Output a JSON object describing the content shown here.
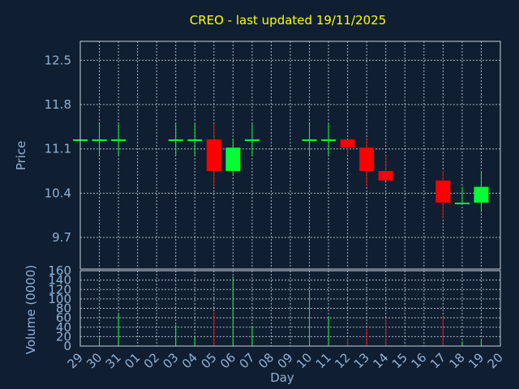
{
  "chart_data": {
    "type": "candlestick",
    "title": "CREO - last updated 19/11/2025",
    "xlabel": "Day",
    "price_panel": {
      "ylabel": "Price",
      "ylim": [
        9.2,
        12.8
      ],
      "yticks": [
        "12.5",
        "11.8",
        "11.1",
        "10.4",
        "9.7"
      ],
      "ytick_values": [
        12.5,
        11.8,
        11.1,
        10.4,
        9.7
      ],
      "grid": true
    },
    "volume_panel": {
      "ylabel": "Volume (0000)",
      "ylim": [
        0,
        160
      ],
      "yticks": [
        "160",
        "140",
        "120",
        "100",
        "80",
        "60",
        "40",
        "20",
        "0"
      ],
      "ytick_values": [
        160,
        140,
        120,
        100,
        80,
        60,
        40,
        20,
        0
      ],
      "grid": true
    },
    "x_labels": [
      "29",
      "30",
      "31",
      "01",
      "02",
      "03",
      "04",
      "05",
      "06",
      "07",
      "08",
      "09",
      "10",
      "11",
      "12",
      "13",
      "14",
      "15",
      "16",
      "17",
      "18",
      "19",
      "20"
    ],
    "candles": [
      {
        "day": "29",
        "open": 11.25,
        "close": 11.25,
        "high": 11.25,
        "low": 11.25,
        "volume": 0
      },
      {
        "day": "30",
        "open": 11.25,
        "close": 11.25,
        "high": 11.5,
        "low": 11.0,
        "volume": 18
      },
      {
        "day": "31",
        "open": 11.25,
        "close": 11.25,
        "high": 11.5,
        "low": 11.0,
        "volume": 70
      },
      {
        "day": "03",
        "open": 11.25,
        "close": 11.25,
        "high": 11.5,
        "low": 11.0,
        "volume": 45
      },
      {
        "day": "04",
        "open": 11.25,
        "close": 11.25,
        "high": 11.5,
        "low": 11.0,
        "volume": 20
      },
      {
        "day": "05",
        "open": 11.25,
        "close": 10.75,
        "high": 11.5,
        "low": 10.5,
        "volume": 72
      },
      {
        "day": "06",
        "open": 10.75,
        "close": 11.12,
        "high": 11.25,
        "low": 10.7,
        "volume": 148
      },
      {
        "day": "07",
        "open": 11.25,
        "close": 11.25,
        "high": 11.5,
        "low": 11.0,
        "volume": 40
      },
      {
        "day": "10",
        "open": 11.25,
        "close": 11.25,
        "high": 11.5,
        "low": 11.0,
        "volume": 118
      },
      {
        "day": "11",
        "open": 11.25,
        "close": 11.25,
        "high": 11.5,
        "low": 11.0,
        "volume": 62
      },
      {
        "day": "12",
        "open": 11.25,
        "close": 11.12,
        "high": 11.25,
        "low": 11.0,
        "volume": 15
      },
      {
        "day": "13",
        "open": 11.12,
        "close": 10.75,
        "high": 11.25,
        "low": 10.5,
        "volume": 37
      },
      {
        "day": "14",
        "open": 10.75,
        "close": 10.6,
        "high": 11.0,
        "low": 10.6,
        "volume": 58
      },
      {
        "day": "17",
        "open": 10.6,
        "close": 10.25,
        "high": 10.75,
        "low": 10.0,
        "volume": 62
      },
      {
        "day": "18",
        "open": 10.25,
        "close": 10.25,
        "high": 10.5,
        "low": 10.25,
        "volume": 10
      },
      {
        "day": "19",
        "open": 10.25,
        "close": 10.5,
        "high": 10.75,
        "low": 10.1,
        "volume": 15
      }
    ],
    "colors": {
      "background": "#0f1e30",
      "up": "#00ff33",
      "down": "#ff0000",
      "title": "#ffff00",
      "axis_text": "#8fb3d9",
      "grid": "#c8d2dc"
    }
  }
}
